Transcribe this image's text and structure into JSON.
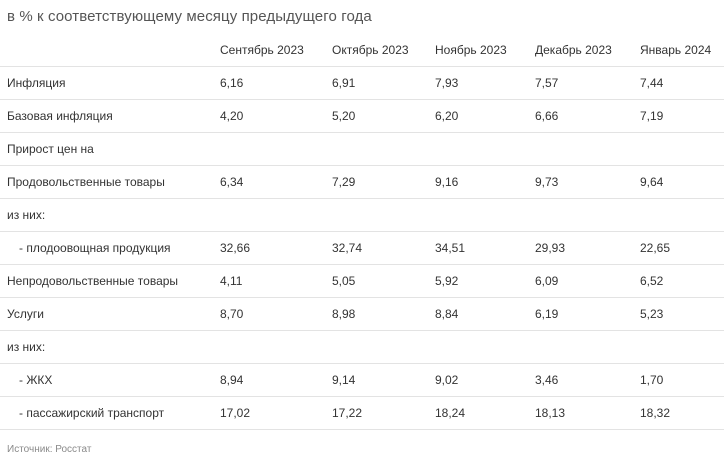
{
  "caption": "в % к соответствующему месяцу предыдущего года",
  "table": {
    "headers": [
      "",
      "Сентябрь 2023",
      "Октябрь 2023",
      "Ноябрь 2023",
      "Декабрь 2023",
      "Январь 2024"
    ],
    "rows": [
      {
        "label": "Инфляция",
        "indent": false,
        "values": [
          "6,16",
          "6,91",
          "7,93",
          "7,57",
          "7,44"
        ]
      },
      {
        "label": "Базовая инфляция",
        "indent": false,
        "values": [
          "4,20",
          "5,20",
          "6,20",
          "6,66",
          "7,19"
        ]
      },
      {
        "label": "Прирост цен на",
        "indent": false,
        "values": [
          "",
          "",
          "",
          "",
          ""
        ]
      },
      {
        "label": "Продовольственные товары",
        "indent": false,
        "values": [
          "6,34",
          "7,29",
          "9,16",
          "9,73",
          "9,64"
        ]
      },
      {
        "label": "из них:",
        "indent": false,
        "values": [
          "",
          "",
          "",
          "",
          ""
        ]
      },
      {
        "label": "- плодоовощная продукция",
        "indent": true,
        "values": [
          "32,66",
          "32,74",
          "34,51",
          "29,93",
          "22,65"
        ]
      },
      {
        "label": "Непродовольственные товары",
        "indent": false,
        "values": [
          "4,11",
          "5,05",
          "5,92",
          "6,09",
          "6,52"
        ]
      },
      {
        "label": "Услуги",
        "indent": false,
        "values": [
          "8,70",
          "8,98",
          "8,84",
          "6,19",
          "5,23"
        ]
      },
      {
        "label": "из них:",
        "indent": false,
        "values": [
          "",
          "",
          "",
          "",
          ""
        ]
      },
      {
        "label": "- ЖКХ",
        "indent": true,
        "values": [
          "8,94",
          "9,14",
          "9,02",
          "3,46",
          "1,70"
        ]
      },
      {
        "label": "- пассажирский транспорт",
        "indent": true,
        "values": [
          "17,02",
          "17,22",
          "18,24",
          "18,13",
          "18,32"
        ]
      }
    ]
  },
  "source": "Источник: Росстат"
}
